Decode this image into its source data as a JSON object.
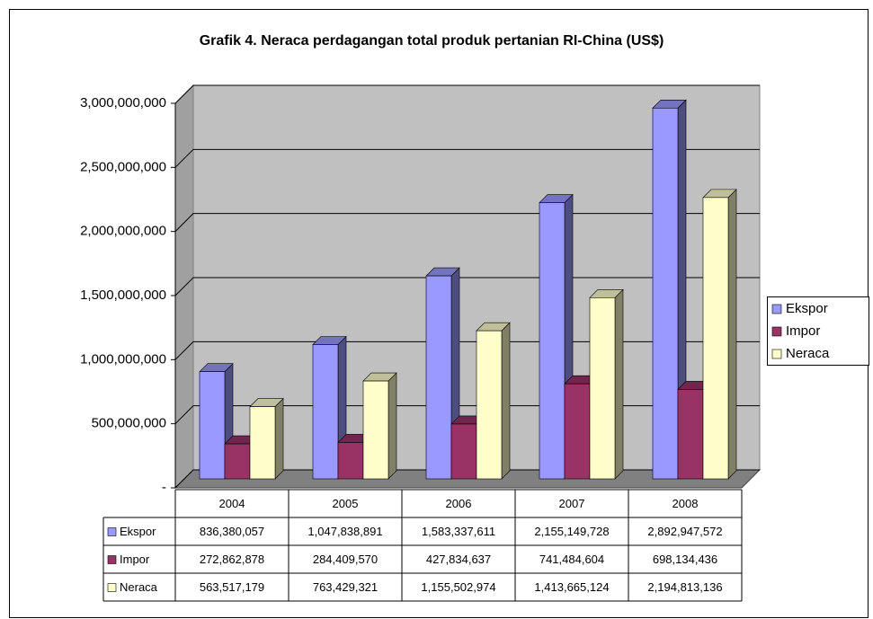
{
  "chart_data": {
    "type": "bar3d",
    "title": "Grafik 4. Neraca perdagangan total produk pertanian RI-China (US$)",
    "categories": [
      "2004",
      "2005",
      "2006",
      "2007",
      "2008"
    ],
    "series": [
      {
        "name": "Ekspor",
        "color": "#9999ff",
        "values": [
          836380057,
          1047838891,
          1583337611,
          2155149728,
          2892947572
        ],
        "value_labels": [
          "836,380,057",
          "1,047,838,891",
          "1,583,337,611",
          "2,155,149,728",
          "2,892,947,572"
        ]
      },
      {
        "name": "Impor",
        "color": "#993366",
        "values": [
          272862878,
          284409570,
          427834637,
          741484604,
          698134436
        ],
        "value_labels": [
          "272,862,878",
          "284,409,570",
          "427,834,637",
          "741,484,604",
          "698,134,436"
        ]
      },
      {
        "name": "Neraca",
        "color": "#ffffcc",
        "values": [
          563517179,
          763429321,
          1155502974,
          1413665124,
          2194813136
        ],
        "value_labels": [
          "563,517,179",
          "763,429,321",
          "1,155,502,974",
          "1,413,665,124",
          "2,194,813,136"
        ]
      }
    ],
    "ylim": [
      0,
      3000000000
    ],
    "yticks": [
      {
        "value": 0,
        "label": "-"
      },
      {
        "value": 500000000,
        "label": "500,000,000"
      },
      {
        "value": 1000000000,
        "label": "1,000,000,000"
      },
      {
        "value": 1500000000,
        "label": "1,500,000,000"
      },
      {
        "value": 2000000000,
        "label": "2,000,000,000"
      },
      {
        "value": 2500000000,
        "label": "2,500,000,000"
      },
      {
        "value": 3000000000,
        "label": "3,000,000,000"
      }
    ],
    "grid": true,
    "legend": "right"
  }
}
